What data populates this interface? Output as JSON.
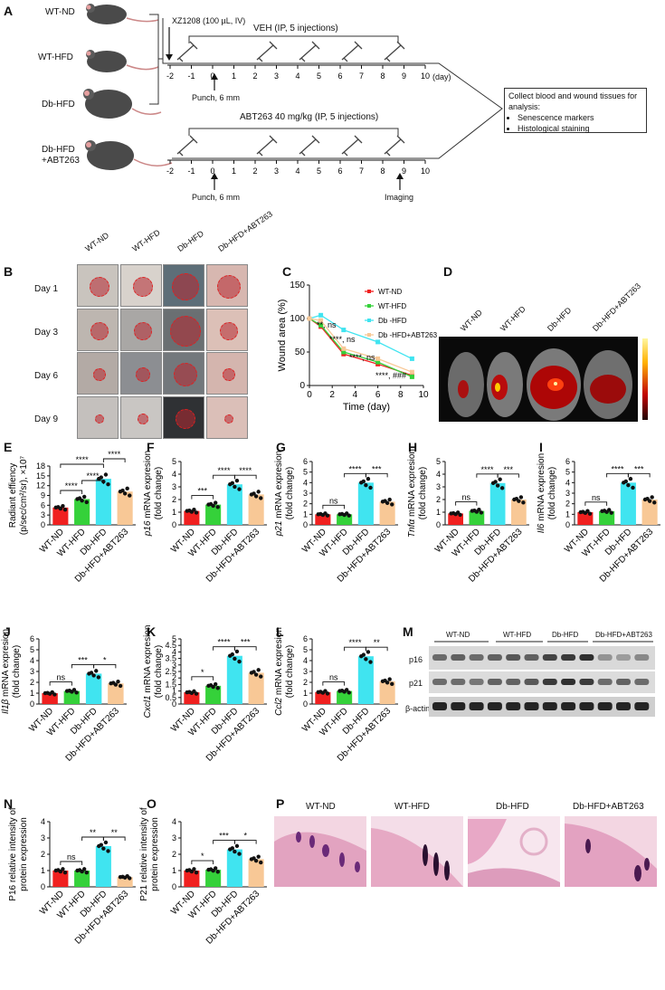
{
  "panels": [
    "A",
    "B",
    "C",
    "D",
    "E",
    "F",
    "G",
    "H",
    "I",
    "J",
    "K",
    "L",
    "M",
    "N",
    "O",
    "P"
  ],
  "panel_a": {
    "groups": [
      "WT-ND",
      "WT-HFD",
      "Db-HFD",
      "Db-HFD\n+ABT263"
    ],
    "group_line1": "Db-HFD",
    "group_line2": "+ABT263",
    "injection_label": "XZ1208 (100 µL, IV)",
    "veh_label": "VEH (IP, 5 injections)",
    "abt_label": "ABT263 40 mg/kg (IP, 5 injections)",
    "punch_label": "Punch, 6 mm",
    "imaging_label": "Imaging",
    "day_unit": "(day)",
    "days": [
      "-2",
      "-1",
      "0",
      "1",
      "2",
      "3",
      "4",
      "5",
      "6",
      "7",
      "8",
      "9",
      "10"
    ],
    "collect_title": "Collect blood and wound tissues for analysis:",
    "collect_items": [
      "Senescence markers",
      "Histological staining"
    ]
  },
  "panel_b": {
    "columns": [
      "WT-ND",
      "WT-HFD",
      "Db-HFD",
      "Db-HFD+ABT263"
    ],
    "rows": [
      "Day 1",
      "Day 3",
      "Day 6",
      "Day 9"
    ]
  },
  "panel_d": {
    "columns": [
      "WT-ND",
      "WT-HFD",
      "Db-HFD",
      "Db-HFD+ABT263"
    ]
  },
  "panel_m": {
    "columns": [
      "WT-ND",
      "WT-HFD",
      "Db-HFD",
      "Db-HFD+ABT263"
    ],
    "rows": [
      "p16",
      "p21",
      "β-actin"
    ]
  },
  "panel_p": {
    "columns": [
      "WT-ND",
      "WT-HFD",
      "Db-HFD",
      "Db-HFD+ABT263"
    ]
  },
  "colors": {
    "WT-ND": "#f0201f",
    "WT-HFD": "#35d13a",
    "Db-HFD": "#40e4f0",
    "Db-HFD+ABT263": "#f8c896"
  },
  "chart_data": [
    {
      "panel": "C",
      "type": "line",
      "xlabel": "Time (day)",
      "ylabel": "Wound area (%)",
      "xlim": [
        0,
        10
      ],
      "ylim": [
        0,
        150
      ],
      "xticks": [
        "0",
        "2",
        "4",
        "6",
        "8",
        "10"
      ],
      "yticks": [
        "0",
        "50",
        "100",
        "150"
      ],
      "x": [
        0,
        1,
        3,
        6,
        9
      ],
      "series": [
        {
          "name": "WT-ND",
          "values": [
            100,
            88,
            47,
            32,
            15
          ]
        },
        {
          "name": "WT-HFD",
          "values": [
            100,
            90,
            50,
            35,
            13
          ]
        },
        {
          "name": "Db -HFD",
          "values": [
            100,
            105,
            83,
            65,
            40
          ]
        },
        {
          "name": "Db -HFD+ABT263",
          "values": [
            100,
            97,
            55,
            40,
            20
          ]
        }
      ],
      "annotations": [
        "**, ns",
        "****, ns",
        "****, ns",
        "****, ###"
      ],
      "legend": "top-right"
    },
    {
      "panel": "E",
      "type": "bar",
      "ylabel_line1": "Radiant effiency",
      "ylabel_line2": "(p/sec/cm²/sr), ×10⁷",
      "ylim": [
        0,
        18
      ],
      "yticks": [
        "0",
        "3",
        "6",
        "9",
        "12",
        "15",
        "18"
      ],
      "categories": [
        "WT-ND",
        "WT-HFD",
        "Db-HFD",
        "Db-HFD+ABT263"
      ],
      "values": [
        5.3,
        7.9,
        14.1,
        10.2
      ],
      "brackets": [
        {
          "from": 0,
          "to": 1,
          "label": "****"
        },
        {
          "from": 1,
          "to": 2,
          "label": "****"
        },
        {
          "from": 0,
          "to": 2,
          "label": "****"
        },
        {
          "from": 2,
          "to": 3,
          "label": "****"
        }
      ]
    },
    {
      "panel": "F",
      "type": "bar",
      "ylabel_italic": "p16",
      "ylabel_rest": " mRNA expresion",
      "ylabel_line2": "(fold change)",
      "ylim": [
        0,
        5
      ],
      "yticks": [
        "0",
        "1",
        "2",
        "3",
        "4",
        "5"
      ],
      "categories": [
        "WT-ND",
        "WT-HFD",
        "Db-HFD",
        "Db-HFD+ABT263"
      ],
      "values": [
        1.1,
        1.6,
        3.2,
        2.4
      ],
      "brackets": [
        {
          "from": 0,
          "to": 1,
          "label": "***"
        },
        {
          "from": 1,
          "to": 2,
          "label": "****"
        },
        {
          "from": 2,
          "to": 3,
          "label": "****"
        }
      ]
    },
    {
      "panel": "G",
      "type": "bar",
      "ylabel_italic": "p21",
      "ylabel_rest": " mRNA expresion",
      "ylabel_line2": "(fold change)",
      "ylim": [
        0,
        6
      ],
      "yticks": [
        "0",
        "1",
        "2",
        "3",
        "4",
        "5",
        "6"
      ],
      "categories": [
        "WT-ND",
        "WT-HFD",
        "Db-HFD",
        "Db-HFD+ABT263"
      ],
      "values": [
        1.0,
        1.0,
        4.0,
        2.2
      ],
      "brackets": [
        {
          "from": 0,
          "to": 1,
          "label": "ns"
        },
        {
          "from": 1,
          "to": 2,
          "label": "****"
        },
        {
          "from": 2,
          "to": 3,
          "label": "***"
        }
      ]
    },
    {
      "panel": "H",
      "type": "bar",
      "ylabel_italic": "Tnfα",
      "ylabel_rest": " mRNA expresion",
      "ylabel_line2": "(fold change)",
      "ylim": [
        0,
        5
      ],
      "yticks": [
        "0",
        "1",
        "2",
        "3",
        "4",
        "5"
      ],
      "categories": [
        "WT-ND",
        "WT-HFD",
        "Db-HFD",
        "Db-HFD+ABT263"
      ],
      "values": [
        0.9,
        1.1,
        3.3,
        2.0
      ],
      "brackets": [
        {
          "from": 0,
          "to": 1,
          "label": "ns"
        },
        {
          "from": 1,
          "to": 2,
          "label": "****"
        },
        {
          "from": 2,
          "to": 3,
          "label": "***"
        }
      ]
    },
    {
      "panel": "I",
      "type": "bar",
      "ylabel_italic": "Il6",
      "ylabel_rest": " mRNA expresion",
      "ylabel_line2": "(fold change)",
      "ylim": [
        0,
        6
      ],
      "yticks": [
        "0",
        "1",
        "2",
        "3",
        "4",
        "5",
        "6"
      ],
      "categories": [
        "WT-ND",
        "WT-HFD",
        "Db-HFD",
        "Db-HFD+ABT263"
      ],
      "values": [
        1.2,
        1.3,
        4.0,
        2.4
      ],
      "brackets": [
        {
          "from": 0,
          "to": 1,
          "label": "ns"
        },
        {
          "from": 1,
          "to": 2,
          "label": "****"
        },
        {
          "from": 2,
          "to": 3,
          "label": "***"
        }
      ]
    },
    {
      "panel": "J",
      "type": "bar",
      "ylabel_italic": "Il1β",
      "ylabel_rest": " mRNA expresion",
      "ylabel_line2": "(fold change)",
      "ylim": [
        0,
        6
      ],
      "yticks": [
        "0",
        "1",
        "2",
        "3",
        "4",
        "5",
        "6"
      ],
      "categories": [
        "WT-ND",
        "WT-HFD",
        "Db-HFD",
        "Db-HFD+ABT263"
      ],
      "values": [
        1.0,
        1.2,
        2.8,
        1.9
      ],
      "brackets": [
        {
          "from": 0,
          "to": 1,
          "label": "ns"
        },
        {
          "from": 1,
          "to": 2,
          "label": "***"
        },
        {
          "from": 2,
          "to": 3,
          "label": "*"
        }
      ]
    },
    {
      "panel": "K",
      "type": "bar",
      "ylabel_italic": "Cxcl1",
      "ylabel_rest": " mRNA expresion",
      "ylabel_line2": "(fold change)",
      "ylim": [
        0,
        5
      ],
      "yticks": [
        "0",
        "0.5",
        "1",
        "1.5",
        "2",
        "2.5",
        "3",
        "3.5",
        "4",
        "4.5",
        "5"
      ],
      "categories": [
        "WT-ND",
        "WT-HFD",
        "Db-HFD",
        "Db-HFD+ABT263"
      ],
      "values": [
        0.9,
        1.4,
        3.7,
        2.4
      ],
      "brackets": [
        {
          "from": 0,
          "to": 1,
          "label": "*"
        },
        {
          "from": 1,
          "to": 2,
          "label": "****"
        },
        {
          "from": 2,
          "to": 3,
          "label": "***"
        }
      ]
    },
    {
      "panel": "L",
      "type": "bar",
      "ylabel_italic": "Ccl2",
      "ylabel_rest": " mRNA expresion",
      "ylabel_line2": "(fold change)",
      "ylim": [
        0,
        6
      ],
      "yticks": [
        "0",
        "1",
        "2",
        "3",
        "4",
        "5",
        "6"
      ],
      "categories": [
        "WT-ND",
        "WT-HFD",
        "Db-HFD",
        "Db-HFD+ABT263"
      ],
      "values": [
        1.1,
        1.2,
        4.4,
        2.1
      ],
      "brackets": [
        {
          "from": 0,
          "to": 1,
          "label": "ns"
        },
        {
          "from": 1,
          "to": 2,
          "label": "****"
        },
        {
          "from": 2,
          "to": 3,
          "label": "**"
        }
      ]
    },
    {
      "panel": "N",
      "type": "bar",
      "ylabel_line1": "P16 relative intensity of",
      "ylabel_line2": "protein expression",
      "ylim": [
        0,
        4
      ],
      "yticks": [
        "0",
        "1",
        "2",
        "3",
        "4"
      ],
      "categories": [
        "WT-ND",
        "WT-HFD",
        "Db-HFD",
        "Db-HFD+ABT263"
      ],
      "values": [
        1.0,
        1.0,
        2.5,
        0.6
      ],
      "brackets": [
        {
          "from": 0,
          "to": 1,
          "label": "ns"
        },
        {
          "from": 1,
          "to": 2,
          "label": "**"
        },
        {
          "from": 2,
          "to": 3,
          "label": "**"
        }
      ]
    },
    {
      "panel": "O",
      "type": "bar",
      "ylabel_line1": "P21 relative intensity of",
      "ylabel_line2": "protein expression",
      "ylim": [
        0,
        4
      ],
      "yticks": [
        "0",
        "1",
        "2",
        "3",
        "4"
      ],
      "categories": [
        "WT-ND",
        "WT-HFD",
        "Db-HFD",
        "Db-HFD+ABT263"
      ],
      "values": [
        1.0,
        1.05,
        2.3,
        1.7
      ],
      "brackets": [
        {
          "from": 0,
          "to": 1,
          "label": "*"
        },
        {
          "from": 1,
          "to": 2,
          "label": "***"
        },
        {
          "from": 2,
          "to": 3,
          "label": "*"
        }
      ]
    }
  ]
}
